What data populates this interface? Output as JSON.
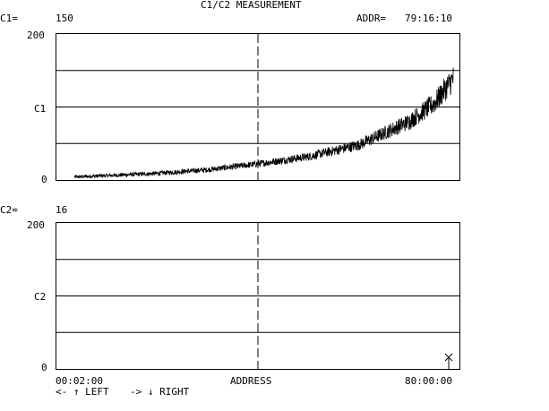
{
  "title": "C1/C2 MEASUREMENT",
  "top": {
    "c1_label": "C1=",
    "c1_value": "150",
    "addr_label": "ADDR=",
    "addr_value": "79:16:10"
  },
  "panel1": {
    "y_top": "200",
    "y_mid": "C1",
    "y_bottom": "0"
  },
  "panel2": {
    "c2_label": "C2=",
    "c2_value": "16",
    "y_top": "200",
    "y_mid": "C2",
    "y_bottom": "0"
  },
  "x_axis": {
    "left": "00:02:00",
    "center": "ADDRESS",
    "right": "80:00:00"
  },
  "nav": {
    "left": "<- ↑ LEFT",
    "right": "-> ↓ RIGHT"
  },
  "cursor": {
    "icon": "x-marker-icon",
    "c2_fraction_of_axis": 0.08
  },
  "chart_data": {
    "type": "line",
    "series": [
      {
        "name": "C1",
        "x": [
          "00:02:00",
          "10:00:00",
          "20:00:00",
          "30:00:00",
          "40:00:00",
          "50:00:00",
          "60:00:00",
          "70:00:00",
          "75:00:00",
          "80:00:00"
        ],
        "values": [
          3,
          6,
          9,
          14,
          22,
          32,
          48,
          80,
          105,
          150
        ]
      },
      {
        "name": "C2",
        "values": []
      }
    ],
    "ylim": [
      0,
      200
    ],
    "xlim": [
      "00:02:00",
      "80:00:00"
    ]
  }
}
